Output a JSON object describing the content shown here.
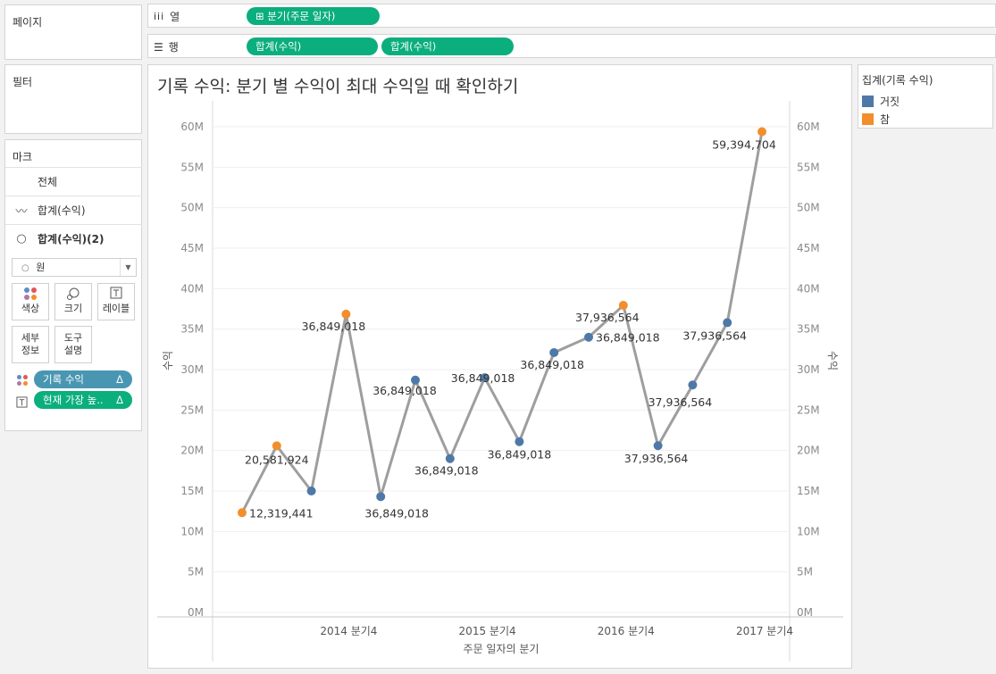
{
  "pages_title": "페이지",
  "filters_title": "필터",
  "columns_shelf": {
    "label": "열",
    "icon": "columns-icon",
    "pills": [
      "⊞ 분기(주문 일자)"
    ]
  },
  "rows_shelf": {
    "label": "행",
    "icon": "rows-icon",
    "pills": [
      "합계(수익)",
      "합계(수익)"
    ]
  },
  "marks": {
    "title": "마크",
    "all_label": "전체",
    "layer1_label": "합계(수익)",
    "layer2_label": "합계(수익)(2)",
    "mark_type": "원",
    "buttons": {
      "color": "색상",
      "size": "크기",
      "label": "레이블",
      "detail_line1": "세부",
      "detail_line2": "정보",
      "tooltip_line1": "도구",
      "tooltip_line2": "설명"
    },
    "field_pills": [
      {
        "text": "기록 수익",
        "delta": "Δ"
      },
      {
        "text": "현재 가장 높..",
        "delta": "Δ"
      }
    ]
  },
  "legend": {
    "title": "집계(기록 수익)",
    "items": [
      {
        "label": "거짓",
        "color": "#4e79a7"
      },
      {
        "label": "참",
        "color": "#f28e2b"
      }
    ]
  },
  "chart_data": {
    "type": "line",
    "title": "기록 수익: 분기 별 수익이 최대 수익일 때 확인하기",
    "xlabel": "주문 일자의 분기",
    "ylabel": "수익",
    "y2label": "수익",
    "ylim": [
      0,
      60000000
    ],
    "yticks": [
      "0M",
      "5M",
      "10M",
      "15M",
      "20M",
      "25M",
      "30M",
      "35M",
      "40M",
      "45M",
      "50M",
      "55M",
      "60M"
    ],
    "xticks": [
      "2014 분기4",
      "2015 분기4",
      "2016 분기4",
      "2017 분기4"
    ],
    "line_color": "#9e9e9e",
    "x": [
      "2014 분기1",
      "2014 분기2",
      "2014 분기3",
      "2014 분기4",
      "2015 분기1",
      "2015 분기2",
      "2015 분기3",
      "2015 분기4",
      "2016 분기1",
      "2016 분기2",
      "2016 분기3",
      "2016 분기4",
      "2017 분기1",
      "2017 분기2",
      "2017 분기3",
      "2017 분기4"
    ],
    "values": [
      12319441,
      20581924,
      15000000,
      36849018,
      14300000,
      28700000,
      19000000,
      29000000,
      21100000,
      32100000,
      34000000,
      37936564,
      20600000,
      28100000,
      35800000,
      59394704
    ],
    "record": [
      true,
      true,
      false,
      true,
      false,
      false,
      false,
      false,
      false,
      false,
      false,
      true,
      false,
      false,
      false,
      true
    ],
    "data_labels": [
      "12,319,441",
      "20,581,924",
      "",
      "36,849,018",
      "36,849,018",
      "36,849,018",
      "36,849,018",
      "36,849,018",
      "36,849,018",
      "36,849,018",
      "36,849,018",
      "37,936,564",
      "37,936,564",
      "37,936,564",
      "37,936,564",
      "59,394,704"
    ],
    "colors": {
      "false": "#4e79a7",
      "true": "#f28e2b"
    }
  }
}
